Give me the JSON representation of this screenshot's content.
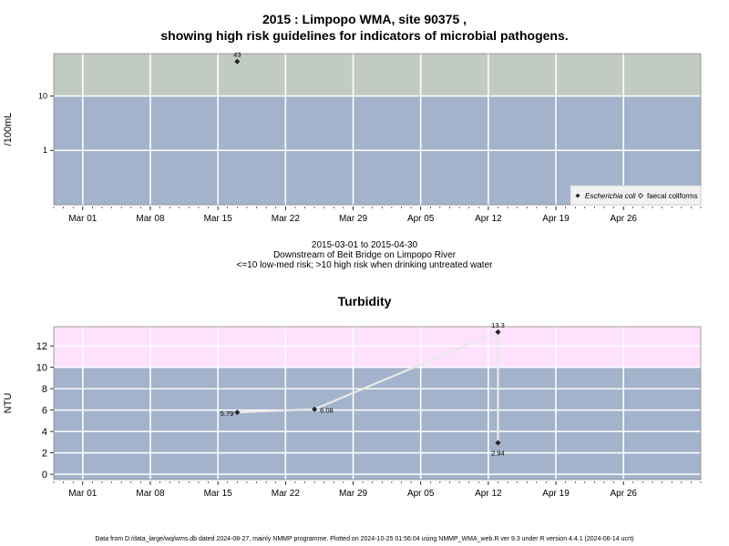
{
  "chart_data": [
    {
      "type": "scatter",
      "title": "2015 : Limpopo WMA, site 90375 ,",
      "subtitle": "showing high risk guidelines for indicators of microbial pathogens.",
      "ylabel": "/100mL",
      "yscale": "log",
      "ylim": [
        0.1,
        60
      ],
      "yticks": [
        1,
        10
      ],
      "ytick_labels": [
        "1",
        "10"
      ],
      "guideline": 10,
      "xlim": [
        "2015-02-26",
        "2015-05-04"
      ],
      "xticks": [
        "2015-03-01",
        "2015-03-08",
        "2015-03-15",
        "2015-03-22",
        "2015-03-29",
        "2015-04-05",
        "2015-04-12",
        "2015-04-19",
        "2015-04-26"
      ],
      "xtick_labels": [
        "Mar 01",
        "Mar 08",
        "Mar 15",
        "Mar 22",
        "Mar 29",
        "Apr 05",
        "Apr 12",
        "Apr 19",
        "Apr 26"
      ],
      "grid": true,
      "legend_position": "bottom-right",
      "series": [
        {
          "name": "Escherichia coli",
          "marker": "filled-diamond",
          "points": [
            {
              "x": "2015-03-17",
              "y": 43,
              "label": "43"
            }
          ]
        },
        {
          "name": "faecal coliforms",
          "marker": "open-diamond",
          "points": []
        }
      ],
      "colors": {
        "above": "#c2cbc1",
        "below": "#a3b3cb"
      }
    },
    {
      "type": "line",
      "title": "Turbidity",
      "ylabel": "NTU",
      "ylim": [
        -0.5,
        13.8
      ],
      "yticks": [
        0,
        2,
        4,
        6,
        8,
        10,
        12
      ],
      "ytick_labels": [
        "0",
        "2",
        "4",
        "6",
        "8",
        "10",
        "12"
      ],
      "guideline": 10,
      "xlim": [
        "2015-02-26",
        "2015-05-04"
      ],
      "xticks": [
        "2015-03-01",
        "2015-03-08",
        "2015-03-15",
        "2015-03-22",
        "2015-03-29",
        "2015-04-05",
        "2015-04-12",
        "2015-04-19",
        "2015-04-26"
      ],
      "xtick_labels": [
        "Mar 01",
        "Mar 08",
        "Mar 15",
        "Mar 22",
        "Mar 29",
        "Apr 05",
        "Apr 12",
        "Apr 19",
        "Apr 26"
      ],
      "grid": true,
      "series": [
        {
          "points": [
            {
              "x": "2015-03-17",
              "y": 5.79,
              "label": "5.79"
            },
            {
              "x": "2015-03-25",
              "y": 6.08,
              "label": "6.08"
            },
            {
              "x": "2015-04-13",
              "y": 13.3,
              "label": "13.3"
            },
            {
              "x": "2015-04-13",
              "y": 2.94,
              "label": "2.94"
            }
          ]
        }
      ],
      "colors": {
        "above": "#fde1fd",
        "below": "#a3b3cb"
      }
    }
  ],
  "info": {
    "date_range": "2015-03-01 to 2015-04-30",
    "location": "Downstream of Beit Bridge on Limpopo River",
    "risk_note": "<=10 low-med risk; >10 high risk when drinking untreated water"
  },
  "footer": "Data from D:/data_large/wq/wms.db dated 2024-08-27, mainly NMMP programme. Plotted on 2024-10-25 01:56:04 using NMMP_WMA_web.R ver 9.3 under R version 4.4.1 (2024-06-14 ucrt)"
}
